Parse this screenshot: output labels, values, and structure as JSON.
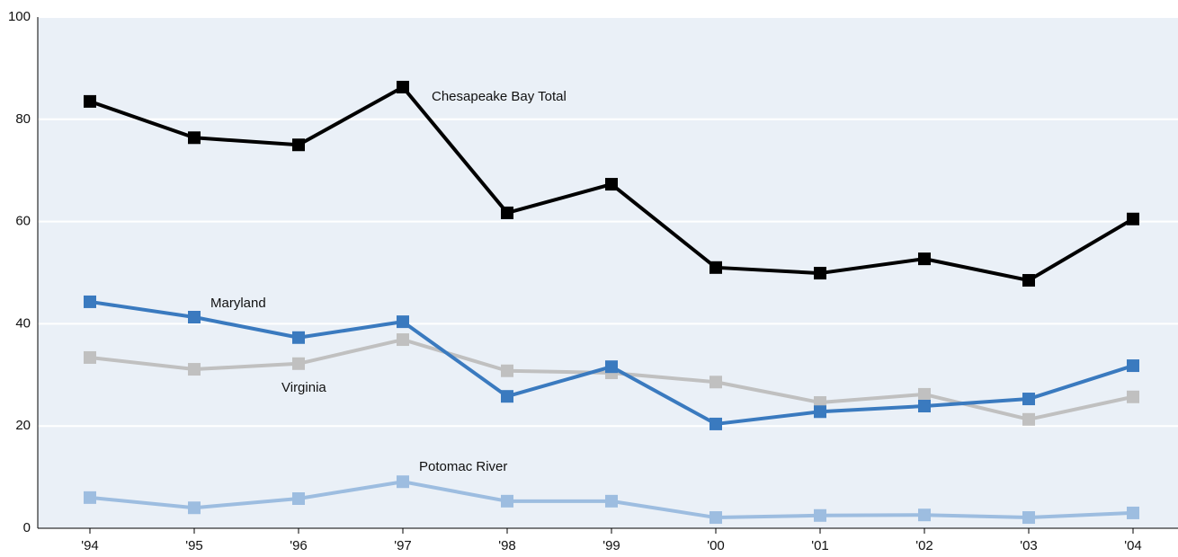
{
  "chart_data": {
    "type": "line",
    "categories": [
      "'94",
      "'95",
      "'96",
      "'97",
      "'98",
      "'99",
      "'00",
      "'01",
      "'02",
      "'03",
      "'04"
    ],
    "series": [
      {
        "name": "Chesapeake Bay Total",
        "color": "#000000",
        "values": [
          83.5,
          76.4,
          75,
          86.3,
          61.7,
          67.3,
          51,
          49.9,
          52.7,
          48.5,
          60.5
        ]
      },
      {
        "name": "Maryland",
        "color": "#3a7abf",
        "values": [
          44.3,
          41.3,
          37.3,
          40.4,
          25.8,
          31.6,
          20.4,
          22.8,
          23.9,
          25.3,
          31.8
        ]
      },
      {
        "name": "Virginia",
        "color": "#c0c0c0",
        "values": [
          33.4,
          31.1,
          32.2,
          36.9,
          30.8,
          30.4,
          28.6,
          24.6,
          26.2,
          21.3,
          25.7
        ]
      },
      {
        "name": "Potomac River",
        "color": "#9dbde0",
        "values": [
          6,
          4,
          5.8,
          9.1,
          5.3,
          5.3,
          2.1,
          2.5,
          2.6,
          2.1,
          3
        ]
      }
    ],
    "ylim": [
      0,
      100
    ],
    "yticks": [
      0,
      20,
      40,
      60,
      80,
      100
    ],
    "grid": true
  }
}
